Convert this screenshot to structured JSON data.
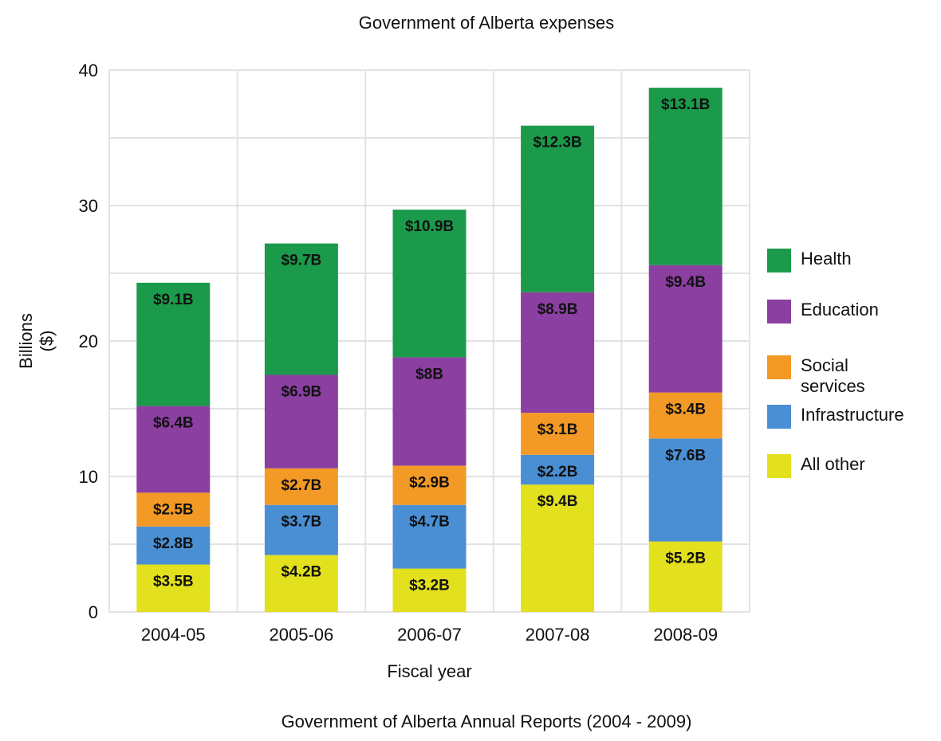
{
  "chart_data": {
    "type": "bar",
    "stacked": true,
    "title": "Government of Alberta expenses",
    "source": "Government of Alberta Annual Reports (2004 - 2009)",
    "xlabel": "Fiscal year",
    "ylabel": "Billions ($)",
    "ylim": [
      0,
      40
    ],
    "yticks": [
      0,
      10,
      20,
      30,
      40
    ],
    "grid": true,
    "legend_position": "right",
    "categories": [
      "2004-05",
      "2005-06",
      "2006-07",
      "2007-08",
      "2008-09"
    ],
    "series": [
      {
        "name": "All other",
        "color": "#e3e01e",
        "values": [
          3.5,
          4.2,
          3.2,
          9.4,
          5.2
        ],
        "labels": [
          "$3.5B",
          "$4.2B",
          "$3.2B",
          "$9.4B",
          "$5.2B"
        ]
      },
      {
        "name": "Infrastructure",
        "color": "#4a8fd4",
        "values": [
          2.8,
          3.7,
          4.7,
          2.2,
          7.6
        ],
        "labels": [
          "$2.8B",
          "$3.7B",
          "$4.7B",
          "$2.2B",
          "$7.6B"
        ]
      },
      {
        "name": "Social services",
        "color": "#f39a26",
        "values": [
          2.5,
          2.7,
          2.9,
          3.1,
          3.4
        ],
        "labels": [
          "$2.5B",
          "$2.7B",
          "$2.9B",
          "$3.1B",
          "$3.4B"
        ]
      },
      {
        "name": "Education",
        "color": "#8b3fa0",
        "values": [
          6.4,
          6.9,
          8,
          8.9,
          9.4
        ],
        "labels": [
          "$6.4B",
          "$6.9B",
          "$8B",
          "$8.9B",
          "$9.4B"
        ]
      },
      {
        "name": "Health",
        "color": "#1b9a4b",
        "values": [
          9.1,
          9.7,
          10.9,
          12.3,
          13.1
        ],
        "labels": [
          "$9.1B",
          "$9.7B",
          "$10.9B",
          "$12.3B",
          "$13.1B"
        ]
      }
    ],
    "legend_order": [
      "Health",
      "Education",
      "Social services",
      "Infrastructure",
      "All other"
    ]
  }
}
